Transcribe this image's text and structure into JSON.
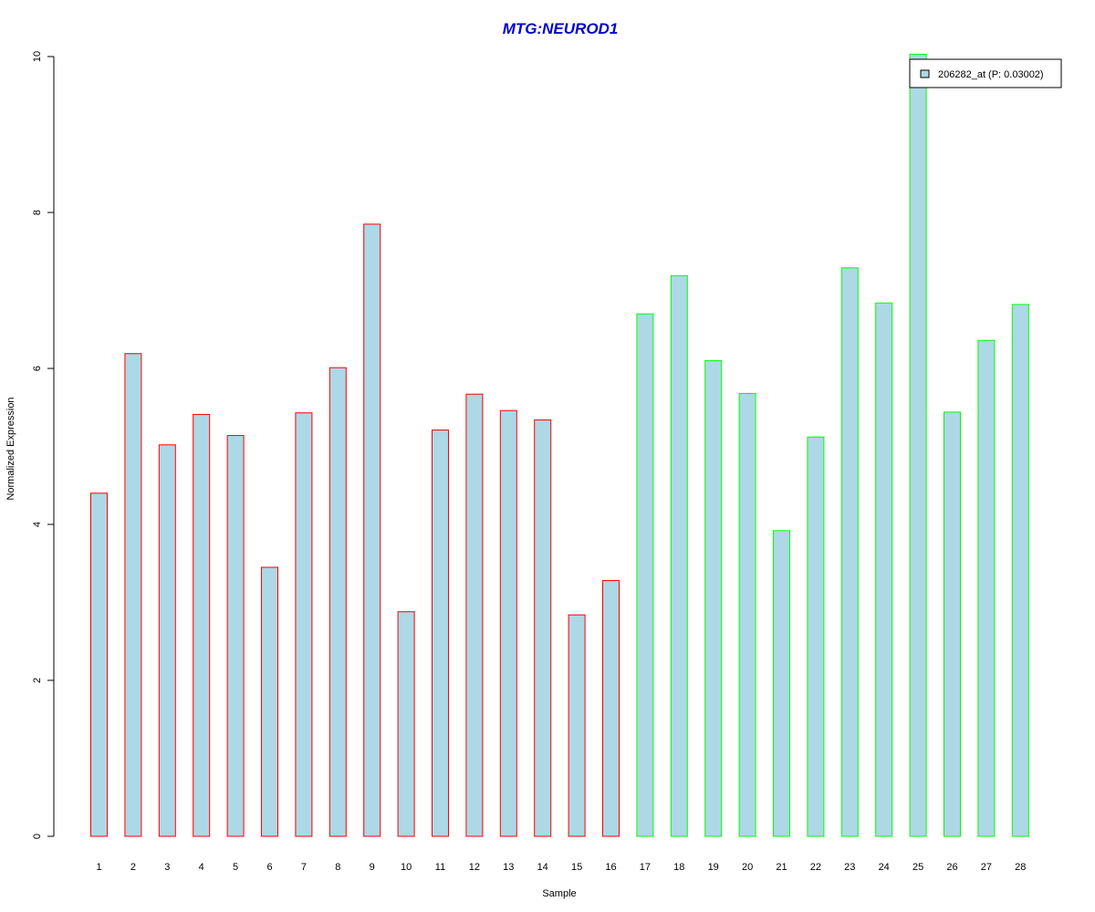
{
  "chart_data": {
    "type": "bar",
    "title": "MTG:NEUROD1",
    "xlabel": "Sample",
    "ylabel": "Normalized Expression",
    "ylim": [
      0,
      10
    ],
    "yticks": [
      "0",
      "2",
      "4",
      "6",
      "8",
      "10"
    ],
    "categories": [
      "1",
      "2",
      "3",
      "4",
      "5",
      "6",
      "7",
      "8",
      "9",
      "10",
      "11",
      "12",
      "13",
      "14",
      "15",
      "16",
      "17",
      "18",
      "19",
      "20",
      "21",
      "22",
      "23",
      "24",
      "25",
      "26",
      "27",
      "28"
    ],
    "values": [
      4.4,
      6.19,
      5.02,
      5.41,
      5.14,
      3.45,
      5.43,
      6.01,
      7.85,
      2.88,
      5.21,
      5.67,
      5.46,
      5.34,
      2.84,
      3.28,
      6.7,
      7.19,
      6.1,
      5.68,
      3.92,
      5.12,
      7.29,
      6.84,
      10.03,
      5.44,
      6.36,
      6.82
    ],
    "groups": [
      1,
      1,
      1,
      1,
      1,
      1,
      1,
      1,
      1,
      1,
      1,
      1,
      1,
      1,
      1,
      1,
      2,
      2,
      2,
      2,
      2,
      2,
      2,
      2,
      2,
      2,
      2,
      2
    ],
    "legend": {
      "label": "206282_at (P: 0.03002)",
      "placement": "top-right"
    },
    "colors": {
      "fill": "#add8e6",
      "group1_border": "#ff0000",
      "group2_border": "#00ff00",
      "title": "#0000cd"
    }
  }
}
